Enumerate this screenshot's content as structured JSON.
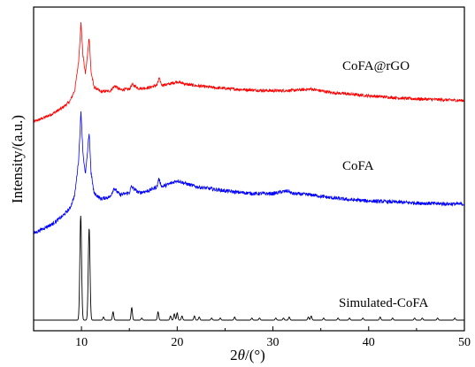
{
  "chart_data": {
    "type": "line",
    "title": "",
    "xlabel_prefix": "2",
    "xlabel_var": "θ",
    "xlabel_unit": "/(°)",
    "ylabel": "Intensity/(a.u.)",
    "xlim": [
      5,
      50
    ],
    "xticks": [
      10,
      20,
      30,
      40,
      50
    ],
    "tick_labels": [
      "10",
      "20",
      "30",
      "40",
      "50"
    ],
    "y_ticks_shown": false,
    "grid": false,
    "legend": "none",
    "series": [
      {
        "name": "CoFA@rGO",
        "color": "#ff0000",
        "noise": 0.045,
        "points": [
          [
            5.0,
            0.0
          ],
          [
            6.0,
            0.12
          ],
          [
            7.0,
            0.25
          ],
          [
            8.0,
            0.42
          ],
          [
            8.8,
            0.62
          ],
          [
            9.3,
            0.95
          ],
          [
            9.7,
            1.8
          ],
          [
            9.95,
            2.95
          ],
          [
            10.15,
            2.0
          ],
          [
            10.4,
            1.45
          ],
          [
            10.6,
            1.9
          ],
          [
            10.8,
            2.55
          ],
          [
            11.0,
            1.5
          ],
          [
            11.3,
            1.05
          ],
          [
            12.0,
            0.9
          ],
          [
            13.0,
            0.93
          ],
          [
            13.5,
            1.08
          ],
          [
            14.0,
            0.96
          ],
          [
            15.0,
            0.98
          ],
          [
            15.3,
            1.12
          ],
          [
            16.0,
            1.0
          ],
          [
            17.0,
            1.02
          ],
          [
            17.9,
            1.1
          ],
          [
            18.1,
            1.3
          ],
          [
            18.4,
            1.1
          ],
          [
            19.0,
            1.12
          ],
          [
            20.0,
            1.2
          ],
          [
            21.0,
            1.12
          ],
          [
            22.0,
            1.08
          ],
          [
            24.0,
            1.02
          ],
          [
            26.0,
            0.98
          ],
          [
            28.0,
            0.95
          ],
          [
            30.0,
            0.93
          ],
          [
            32.0,
            0.94
          ],
          [
            34.0,
            0.98
          ],
          [
            36.0,
            0.88
          ],
          [
            38.0,
            0.83
          ],
          [
            40.0,
            0.78
          ],
          [
            42.0,
            0.74
          ],
          [
            44.0,
            0.7
          ],
          [
            46.0,
            0.68
          ],
          [
            48.0,
            0.66
          ],
          [
            50.0,
            0.64
          ]
        ]
      },
      {
        "name": "CoFA",
        "color": "#0000ff",
        "noise": 0.045,
        "points": [
          [
            5.0,
            0.0
          ],
          [
            6.0,
            0.12
          ],
          [
            7.0,
            0.24
          ],
          [
            8.0,
            0.42
          ],
          [
            8.8,
            0.62
          ],
          [
            9.3,
            0.95
          ],
          [
            9.7,
            1.8
          ],
          [
            9.95,
            3.0
          ],
          [
            10.15,
            2.0
          ],
          [
            10.4,
            1.45
          ],
          [
            10.6,
            1.9
          ],
          [
            10.8,
            2.5
          ],
          [
            11.0,
            1.5
          ],
          [
            11.3,
            1.0
          ],
          [
            12.0,
            0.85
          ],
          [
            13.0,
            0.9
          ],
          [
            13.4,
            1.12
          ],
          [
            14.0,
            0.95
          ],
          [
            15.0,
            1.0
          ],
          [
            15.2,
            1.15
          ],
          [
            16.0,
            1.0
          ],
          [
            17.0,
            1.05
          ],
          [
            17.9,
            1.15
          ],
          [
            18.05,
            1.35
          ],
          [
            18.4,
            1.15
          ],
          [
            19.0,
            1.2
          ],
          [
            20.0,
            1.3
          ],
          [
            21.0,
            1.22
          ],
          [
            22.0,
            1.15
          ],
          [
            24.0,
            1.08
          ],
          [
            26.0,
            1.02
          ],
          [
            28.0,
            0.98
          ],
          [
            30.0,
            0.98
          ],
          [
            31.6,
            1.05
          ],
          [
            32.0,
            0.98
          ],
          [
            34.0,
            0.95
          ],
          [
            36.0,
            0.88
          ],
          [
            38.0,
            0.83
          ],
          [
            40.0,
            0.8
          ],
          [
            42.0,
            0.78
          ],
          [
            44.0,
            0.76
          ],
          [
            46.0,
            0.74
          ],
          [
            48.0,
            0.73
          ],
          [
            50.0,
            0.72
          ]
        ]
      },
      {
        "name": "Simulated-CoFA",
        "color": "#000000",
        "noise": 0,
        "peaks": [
          [
            9.92,
            100,
            0.09
          ],
          [
            10.8,
            88,
            0.09
          ],
          [
            12.3,
            3,
            0.07
          ],
          [
            13.3,
            8,
            0.07
          ],
          [
            15.25,
            12,
            0.07
          ],
          [
            16.3,
            2,
            0.07
          ],
          [
            18.0,
            8,
            0.07
          ],
          [
            19.3,
            4,
            0.07
          ],
          [
            19.7,
            6,
            0.07
          ],
          [
            20.0,
            7,
            0.07
          ],
          [
            20.5,
            4,
            0.07
          ],
          [
            21.8,
            4,
            0.07
          ],
          [
            22.3,
            3,
            0.07
          ],
          [
            23.6,
            2,
            0.07
          ],
          [
            24.5,
            2,
            0.07
          ],
          [
            26.0,
            3,
            0.07
          ],
          [
            27.8,
            2,
            0.07
          ],
          [
            28.6,
            2,
            0.07
          ],
          [
            30.3,
            2,
            0.07
          ],
          [
            31.1,
            2,
            0.07
          ],
          [
            31.7,
            3,
            0.07
          ],
          [
            33.7,
            3,
            0.07
          ],
          [
            34.0,
            4,
            0.07
          ],
          [
            35.3,
            2,
            0.07
          ],
          [
            36.8,
            2,
            0.07
          ],
          [
            38.0,
            2,
            0.07
          ],
          [
            39.4,
            2,
            0.07
          ],
          [
            41.2,
            3,
            0.07
          ],
          [
            42.5,
            2,
            0.07
          ],
          [
            44.8,
            2,
            0.07
          ],
          [
            45.6,
            2,
            0.07
          ],
          [
            47.2,
            2,
            0.07
          ],
          [
            49.0,
            2,
            0.07
          ]
        ]
      }
    ],
    "annotations": [
      "CoFA@rGO",
      "CoFA",
      "Simulated-CoFA"
    ]
  }
}
